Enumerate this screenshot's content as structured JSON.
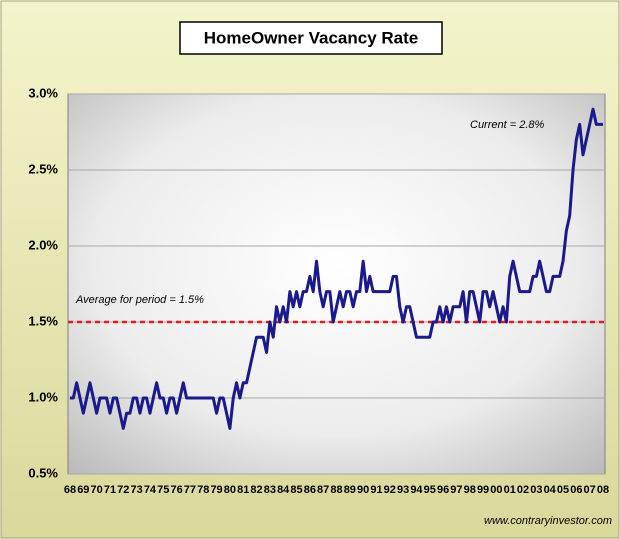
{
  "chart_data": {
    "type": "line",
    "title": "HomeOwner Vacancy Rate",
    "categories": [
      "68",
      null,
      null,
      null,
      "69",
      null,
      null,
      null,
      "70",
      null,
      null,
      null,
      "71",
      null,
      null,
      null,
      "72",
      null,
      null,
      null,
      "73",
      null,
      null,
      null,
      "74",
      null,
      null,
      null,
      "75",
      null,
      null,
      null,
      "76",
      null,
      null,
      null,
      "77",
      null,
      null,
      null,
      "78",
      null,
      null,
      null,
      "79",
      null,
      null,
      null,
      "80",
      null,
      null,
      null,
      "81",
      null,
      null,
      null,
      "82",
      null,
      null,
      null,
      "83",
      null,
      null,
      null,
      "84",
      null,
      null,
      null,
      "85",
      null,
      null,
      null,
      "86",
      null,
      null,
      null,
      "87",
      null,
      null,
      null,
      "88",
      null,
      null,
      null,
      "89",
      null,
      null,
      null,
      "90",
      null,
      null,
      null,
      "91",
      null,
      null,
      null,
      "92",
      null,
      null,
      null,
      "93",
      null,
      null,
      null,
      "94",
      null,
      null,
      null,
      "95",
      null,
      null,
      null,
      "96",
      null,
      null,
      null,
      "97",
      null,
      null,
      null,
      "98",
      null,
      null,
      null,
      "99",
      null,
      null,
      null,
      "00",
      null,
      null,
      null,
      "01",
      null,
      null,
      null,
      "02",
      null,
      null,
      null,
      "03",
      null,
      null,
      null,
      "04",
      null,
      null,
      null,
      "05",
      null,
      null,
      null,
      "06",
      null,
      null,
      null,
      "07",
      null,
      null,
      null,
      "08"
    ],
    "values": [
      1.0,
      1.0,
      1.1,
      1.0,
      0.9,
      1.0,
      1.1,
      1.0,
      0.9,
      1.0,
      1.0,
      1.0,
      0.9,
      1.0,
      1.0,
      0.9,
      0.8,
      0.9,
      0.9,
      1.0,
      1.0,
      0.9,
      1.0,
      1.0,
      0.9,
      1.0,
      1.1,
      1.0,
      1.0,
      0.9,
      1.0,
      1.0,
      0.9,
      1.0,
      1.1,
      1.0,
      1.0,
      1.0,
      1.0,
      1.0,
      1.0,
      1.0,
      1.0,
      1.0,
      0.9,
      1.0,
      1.0,
      0.9,
      0.8,
      1.0,
      1.1,
      1.0,
      1.1,
      1.1,
      1.2,
      1.3,
      1.4,
      1.4,
      1.4,
      1.3,
      1.5,
      1.4,
      1.6,
      1.5,
      1.6,
      1.5,
      1.7,
      1.6,
      1.7,
      1.6,
      1.7,
      1.7,
      1.8,
      1.7,
      1.9,
      1.7,
      1.6,
      1.7,
      1.7,
      1.5,
      1.6,
      1.7,
      1.6,
      1.7,
      1.7,
      1.6,
      1.7,
      1.7,
      1.9,
      1.7,
      1.8,
      1.7,
      1.7,
      1.7,
      1.7,
      1.7,
      1.7,
      1.8,
      1.8,
      1.6,
      1.5,
      1.6,
      1.6,
      1.5,
      1.4,
      1.4,
      1.4,
      1.4,
      1.4,
      1.5,
      1.5,
      1.6,
      1.5,
      1.6,
      1.5,
      1.6,
      1.6,
      1.6,
      1.7,
      1.5,
      1.7,
      1.7,
      1.6,
      1.5,
      1.7,
      1.7,
      1.6,
      1.7,
      1.6,
      1.5,
      1.6,
      1.5,
      1.8,
      1.9,
      1.8,
      1.7,
      1.7,
      1.7,
      1.7,
      1.8,
      1.8,
      1.9,
      1.8,
      1.7,
      1.7,
      1.8,
      1.8,
      1.8,
      1.9,
      2.1,
      2.2,
      2.5,
      2.7,
      2.8,
      2.6,
      2.7,
      2.8,
      2.9,
      2.8,
      2.8,
      2.8
    ],
    "color": "#1a1a8c",
    "ylim": [
      0.5,
      3.0
    ],
    "yticks": [
      {
        "value": 0.5,
        "label": "0.5%"
      },
      {
        "value": 1.0,
        "label": "1.0%"
      },
      {
        "value": 1.5,
        "label": "1.5%"
      },
      {
        "value": 2.0,
        "label": "2.0%"
      },
      {
        "value": 2.5,
        "label": "2.5%"
      },
      {
        "value": 3.0,
        "label": "3.0%"
      }
    ],
    "grid": true,
    "average_line": {
      "value": 1.5,
      "label": "Average for period = 1.5%",
      "color": "#e02020"
    },
    "current_annotation": "Current = 2.8%",
    "source": "www.contraryinvestor.com"
  }
}
